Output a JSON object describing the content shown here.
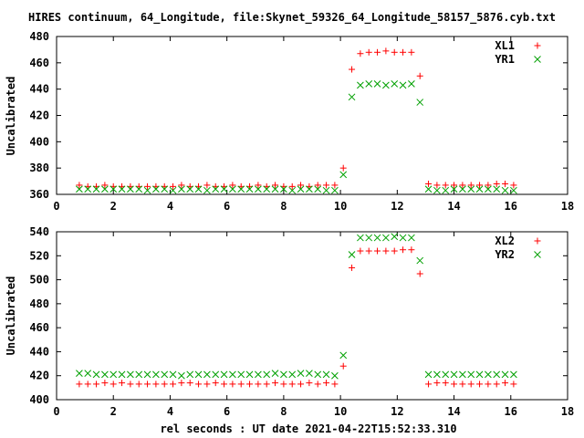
{
  "title": "HIRES continuum, 64_Longitude, file:Skynet_59326_64_Longitude_58157_5876.cyb.txt",
  "xlabel": "rel seconds : UT date 2021-04-22T15:52:33.310",
  "colors": {
    "xl": "#ff0000",
    "yr": "#00a000",
    "axis": "#000000"
  },
  "chart_data": [
    {
      "type": "scatter",
      "ylabel": "Uncalibrated",
      "xlim": [
        0,
        18
      ],
      "ylim": [
        360,
        480
      ],
      "xticks": [
        0,
        2,
        4,
        6,
        8,
        10,
        12,
        14,
        16,
        18
      ],
      "yticks": [
        360,
        380,
        400,
        420,
        440,
        460,
        480
      ],
      "legend_position": "top-right",
      "series": [
        {
          "name": "XL1",
          "marker": "plus",
          "points": [
            [
              0.8,
              367
            ],
            [
              1.1,
              366
            ],
            [
              1.4,
              366
            ],
            [
              1.7,
              367
            ],
            [
              2.0,
              366
            ],
            [
              2.3,
              366
            ],
            [
              2.6,
              366
            ],
            [
              2.9,
              366
            ],
            [
              3.2,
              366
            ],
            [
              3.5,
              366
            ],
            [
              3.8,
              366
            ],
            [
              4.1,
              366
            ],
            [
              4.4,
              367
            ],
            [
              4.7,
              366
            ],
            [
              5.0,
              366
            ],
            [
              5.3,
              367
            ],
            [
              5.6,
              366
            ],
            [
              5.9,
              366
            ],
            [
              6.2,
              367
            ],
            [
              6.5,
              366
            ],
            [
              6.8,
              366
            ],
            [
              7.1,
              367
            ],
            [
              7.4,
              366
            ],
            [
              7.7,
              367
            ],
            [
              8.0,
              366
            ],
            [
              8.3,
              366
            ],
            [
              8.6,
              367
            ],
            [
              8.9,
              366
            ],
            [
              9.2,
              367
            ],
            [
              9.5,
              367
            ],
            [
              9.8,
              367
            ],
            [
              10.1,
              380
            ],
            [
              10.4,
              455
            ],
            [
              10.7,
              467
            ],
            [
              11.0,
              468
            ],
            [
              11.3,
              468
            ],
            [
              11.6,
              469
            ],
            [
              11.9,
              468
            ],
            [
              12.2,
              468
            ],
            [
              12.5,
              468
            ],
            [
              12.8,
              450
            ],
            [
              13.1,
              368
            ],
            [
              13.4,
              367
            ],
            [
              13.7,
              367
            ],
            [
              14.0,
              367
            ],
            [
              14.3,
              367
            ],
            [
              14.6,
              367
            ],
            [
              14.9,
              367
            ],
            [
              15.2,
              367
            ],
            [
              15.5,
              368
            ],
            [
              15.8,
              368
            ],
            [
              16.1,
              367
            ]
          ]
        },
        {
          "name": "YR1",
          "marker": "cross",
          "points": [
            [
              0.8,
              364
            ],
            [
              1.1,
              364
            ],
            [
              1.4,
              364
            ],
            [
              1.7,
              364
            ],
            [
              2.0,
              364
            ],
            [
              2.3,
              364
            ],
            [
              2.6,
              364
            ],
            [
              2.9,
              364
            ],
            [
              3.2,
              363
            ],
            [
              3.5,
              364
            ],
            [
              3.8,
              364
            ],
            [
              4.1,
              363
            ],
            [
              4.4,
              364
            ],
            [
              4.7,
              364
            ],
            [
              5.0,
              364
            ],
            [
              5.3,
              363
            ],
            [
              5.6,
              364
            ],
            [
              5.9,
              364
            ],
            [
              6.2,
              364
            ],
            [
              6.5,
              364
            ],
            [
              6.8,
              364
            ],
            [
              7.1,
              364
            ],
            [
              7.4,
              364
            ],
            [
              7.7,
              364
            ],
            [
              8.0,
              364
            ],
            [
              8.3,
              363
            ],
            [
              8.6,
              364
            ],
            [
              8.9,
              364
            ],
            [
              9.2,
              364
            ],
            [
              9.5,
              363
            ],
            [
              9.8,
              363
            ],
            [
              10.1,
              375
            ],
            [
              10.4,
              434
            ],
            [
              10.7,
              443
            ],
            [
              11.0,
              444
            ],
            [
              11.3,
              444
            ],
            [
              11.6,
              443
            ],
            [
              11.9,
              444
            ],
            [
              12.2,
              443
            ],
            [
              12.5,
              444
            ],
            [
              12.8,
              430
            ],
            [
              13.1,
              364
            ],
            [
              13.4,
              363
            ],
            [
              13.7,
              363
            ],
            [
              14.0,
              364
            ],
            [
              14.3,
              364
            ],
            [
              14.6,
              364
            ],
            [
              14.9,
              364
            ],
            [
              15.2,
              364
            ],
            [
              15.5,
              364
            ],
            [
              15.8,
              363
            ],
            [
              16.1,
              363
            ]
          ]
        }
      ]
    },
    {
      "type": "scatter",
      "ylabel": "Uncalibrated",
      "xlim": [
        0,
        18
      ],
      "ylim": [
        400,
        540
      ],
      "xticks": [
        0,
        2,
        4,
        6,
        8,
        10,
        12,
        14,
        16,
        18
      ],
      "yticks": [
        400,
        420,
        440,
        460,
        480,
        500,
        520,
        540
      ],
      "legend_position": "top-right",
      "series": [
        {
          "name": "XL2",
          "marker": "plus",
          "points": [
            [
              0.8,
              413
            ],
            [
              1.1,
              413
            ],
            [
              1.4,
              413
            ],
            [
              1.7,
              414
            ],
            [
              2.0,
              413
            ],
            [
              2.3,
              414
            ],
            [
              2.6,
              413
            ],
            [
              2.9,
              413
            ],
            [
              3.2,
              413
            ],
            [
              3.5,
              413
            ],
            [
              3.8,
              413
            ],
            [
              4.1,
              413
            ],
            [
              4.4,
              414
            ],
            [
              4.7,
              414
            ],
            [
              5.0,
              413
            ],
            [
              5.3,
              413
            ],
            [
              5.6,
              414
            ],
            [
              5.9,
              413
            ],
            [
              6.2,
              413
            ],
            [
              6.5,
              413
            ],
            [
              6.8,
              413
            ],
            [
              7.1,
              413
            ],
            [
              7.4,
              413
            ],
            [
              7.7,
              414
            ],
            [
              8.0,
              413
            ],
            [
              8.3,
              413
            ],
            [
              8.6,
              413
            ],
            [
              8.9,
              414
            ],
            [
              9.2,
              413
            ],
            [
              9.5,
              414
            ],
            [
              9.8,
              413
            ],
            [
              10.1,
              428
            ],
            [
              10.4,
              510
            ],
            [
              10.7,
              524
            ],
            [
              11.0,
              524
            ],
            [
              11.3,
              524
            ],
            [
              11.6,
              524
            ],
            [
              11.9,
              524
            ],
            [
              12.2,
              525
            ],
            [
              12.5,
              525
            ],
            [
              12.8,
              505
            ],
            [
              13.1,
              413
            ],
            [
              13.4,
              414
            ],
            [
              13.7,
              414
            ],
            [
              14.0,
              413
            ],
            [
              14.3,
              413
            ],
            [
              14.6,
              413
            ],
            [
              14.9,
              413
            ],
            [
              15.2,
              413
            ],
            [
              15.5,
              413
            ],
            [
              15.8,
              414
            ],
            [
              16.1,
              413
            ]
          ]
        },
        {
          "name": "YR2",
          "marker": "cross",
          "points": [
            [
              0.8,
              422
            ],
            [
              1.1,
              422
            ],
            [
              1.4,
              421
            ],
            [
              1.7,
              421
            ],
            [
              2.0,
              421
            ],
            [
              2.3,
              421
            ],
            [
              2.6,
              421
            ],
            [
              2.9,
              421
            ],
            [
              3.2,
              421
            ],
            [
              3.5,
              421
            ],
            [
              3.8,
              421
            ],
            [
              4.1,
              421
            ],
            [
              4.4,
              420
            ],
            [
              4.7,
              421
            ],
            [
              5.0,
              421
            ],
            [
              5.3,
              421
            ],
            [
              5.6,
              421
            ],
            [
              5.9,
              421
            ],
            [
              6.2,
              421
            ],
            [
              6.5,
              421
            ],
            [
              6.8,
              421
            ],
            [
              7.1,
              421
            ],
            [
              7.4,
              421
            ],
            [
              7.7,
              422
            ],
            [
              8.0,
              421
            ],
            [
              8.3,
              421
            ],
            [
              8.6,
              422
            ],
            [
              8.9,
              422
            ],
            [
              9.2,
              421
            ],
            [
              9.5,
              421
            ],
            [
              9.8,
              420
            ],
            [
              10.1,
              437
            ],
            [
              10.4,
              521
            ],
            [
              10.7,
              535
            ],
            [
              11.0,
              535
            ],
            [
              11.3,
              535
            ],
            [
              11.6,
              535
            ],
            [
              11.9,
              536
            ],
            [
              12.2,
              535
            ],
            [
              12.5,
              535
            ],
            [
              12.8,
              516
            ],
            [
              13.1,
              421
            ],
            [
              13.4,
              421
            ],
            [
              13.7,
              421
            ],
            [
              14.0,
              421
            ],
            [
              14.3,
              421
            ],
            [
              14.6,
              421
            ],
            [
              14.9,
              421
            ],
            [
              15.2,
              421
            ],
            [
              15.5,
              421
            ],
            [
              15.8,
              421
            ],
            [
              16.1,
              421
            ]
          ]
        }
      ]
    }
  ]
}
